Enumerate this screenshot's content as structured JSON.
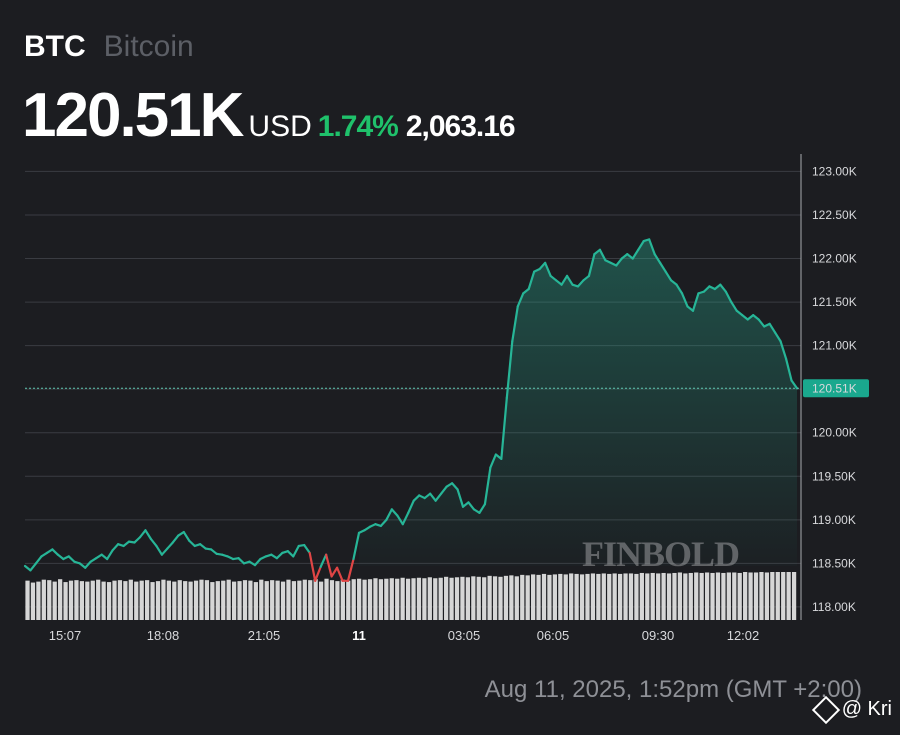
{
  "header": {
    "symbol": "BTC",
    "name": "Bitcoin",
    "price": "120.51K",
    "currency": "USD",
    "change_pct": "1.74%",
    "change_abs": "2,063.16"
  },
  "footer": {
    "timestamp": "Aug 11, 2025, 1:52pm (GMT +2:00)",
    "credit": "@ Kri"
  },
  "watermark": "FINBOLD",
  "colors": {
    "background": "#1c1d21",
    "up": "#1fc16b",
    "line": "#27b597",
    "down": "#e04545",
    "volume": "#d6d6d6",
    "grid": "#3a3c42"
  },
  "chart_data": {
    "type": "line",
    "x_ticks": [
      "15:07",
      "18:08",
      "21:05",
      "11",
      "03:05",
      "06:05",
      "09:30",
      "12:02"
    ],
    "y_ticks": [
      "118.00K",
      "118.50K",
      "119.00K",
      "119.50K",
      "120.00K",
      "120.50K",
      "121.00K",
      "121.50K",
      "122.00K",
      "122.50K",
      "123.00K"
    ],
    "ylim": [
      117.85,
      123.2
    ],
    "current_value": 120.51,
    "current_label": "120.51K",
    "baseline": 118.47,
    "series": [
      {
        "values": [
          118.47,
          118.42,
          118.5,
          118.58,
          118.62,
          118.66,
          118.6,
          118.55,
          118.58,
          118.52,
          118.5,
          118.45,
          118.52,
          118.56,
          118.6,
          118.55,
          118.65,
          118.72,
          118.7,
          118.75,
          118.74,
          118.8,
          118.88,
          118.78,
          118.7,
          118.6,
          118.67,
          118.74,
          118.82,
          118.86,
          118.76,
          118.7,
          118.72,
          118.67,
          118.66,
          118.61,
          118.6,
          118.58,
          118.55,
          118.56,
          118.5,
          118.52,
          118.48,
          118.55,
          118.58,
          118.6,
          118.56,
          118.62,
          118.64,
          118.58,
          118.7,
          118.71,
          118.62,
          118.3,
          118.46,
          118.6,
          118.35,
          118.45,
          118.3,
          118.3,
          118.55,
          118.85,
          118.88,
          118.92,
          118.95,
          118.93,
          119.0,
          119.12,
          119.05,
          118.95,
          119.08,
          119.22,
          119.28,
          119.25,
          119.3,
          119.22,
          119.3,
          119.38,
          119.42,
          119.35,
          119.15,
          119.2,
          119.12,
          119.08,
          119.18,
          119.6,
          119.75,
          119.7,
          120.4,
          121.05,
          121.45,
          121.6,
          121.65,
          121.85,
          121.88,
          121.95,
          121.8,
          121.75,
          121.7,
          121.8,
          121.7,
          121.68,
          121.75,
          121.8,
          122.05,
          122.1,
          121.98,
          121.95,
          121.92,
          122.0,
          122.05,
          122.0,
          122.1,
          122.2,
          122.22,
          122.05,
          121.95,
          121.85,
          121.75,
          121.7,
          121.6,
          121.45,
          121.4,
          121.6,
          121.62,
          121.68,
          121.65,
          121.7,
          121.62,
          121.5,
          121.4,
          121.35,
          121.3,
          121.35,
          121.3,
          121.22,
          121.25,
          121.15,
          121.05,
          120.85,
          120.6,
          120.51
        ]
      }
    ],
    "volume": [
      0.82,
      0.78,
      0.8,
      0.84,
      0.83,
      0.8,
      0.85,
      0.79,
      0.82,
      0.83,
      0.81,
      0.8,
      0.82,
      0.84,
      0.8,
      0.79,
      0.82,
      0.83,
      0.81,
      0.84,
      0.8,
      0.82,
      0.83,
      0.79,
      0.81,
      0.84,
      0.82,
      0.8,
      0.83,
      0.81,
      0.8,
      0.82,
      0.84,
      0.83,
      0.79,
      0.81,
      0.82,
      0.84,
      0.8,
      0.81,
      0.83,
      0.82,
      0.79,
      0.84,
      0.81,
      0.83,
      0.82,
      0.8,
      0.84,
      0.81,
      0.82,
      0.84,
      0.83,
      0.85,
      0.8,
      0.86,
      0.83,
      0.81,
      0.84,
      0.82,
      0.85,
      0.86,
      0.84,
      0.85,
      0.87,
      0.85,
      0.86,
      0.87,
      0.86,
      0.88,
      0.86,
      0.87,
      0.88,
      0.87,
      0.89,
      0.87,
      0.88,
      0.9,
      0.88,
      0.89,
      0.9,
      0.89,
      0.91,
      0.9,
      0.89,
      0.92,
      0.91,
      0.9,
      0.92,
      0.93,
      0.91,
      0.94,
      0.93,
      0.95,
      0.94,
      0.96,
      0.94,
      0.95,
      0.96,
      0.95,
      0.97,
      0.96,
      0.95,
      0.96,
      0.97,
      0.96,
      0.97,
      0.96,
      0.97,
      0.96,
      0.97,
      0.97,
      0.96,
      0.98,
      0.97,
      0.98,
      0.97,
      0.98,
      0.97,
      0.98,
      0.99,
      0.97,
      0.98,
      0.99,
      0.98,
      0.99,
      0.98,
      0.99,
      0.98,
      0.99,
      0.99,
      0.98,
      1.0,
      0.99,
      0.99,
      1.0,
      0.99,
      1.0,
      1.0,
      1.0,
      1.0,
      1.0
    ]
  }
}
